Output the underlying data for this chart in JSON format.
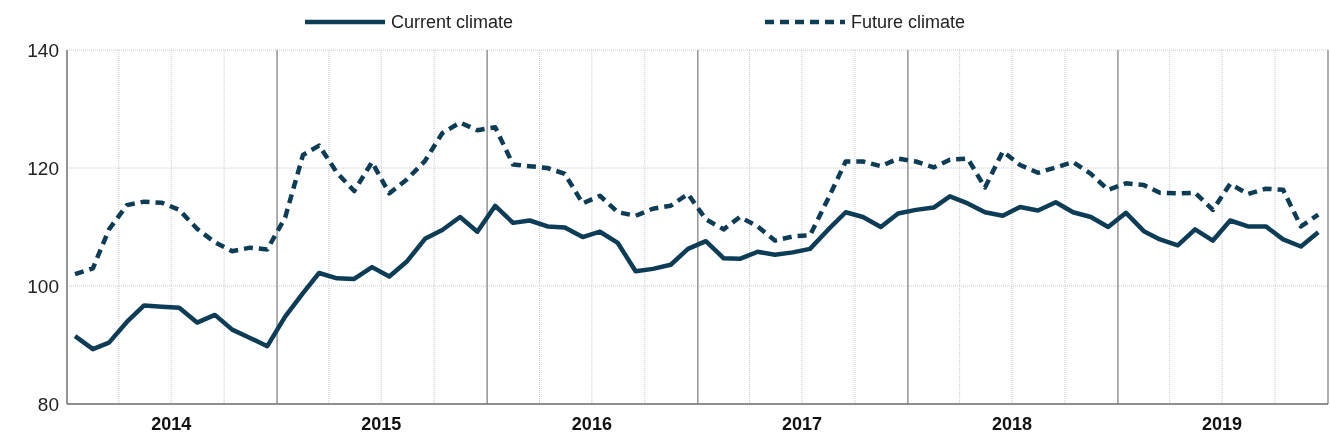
{
  "chart_data": {
    "type": "line",
    "legend": "top",
    "grid": true,
    "marker": "none",
    "x": [
      "2014-01-15",
      "2014-02-15",
      "2014-03-15",
      "2014-04-15",
      "2014-05-15",
      "2014-06-15",
      "2014-07-15",
      "2014-08-15",
      "2014-09-15",
      "2014-10-15",
      "2014-11-15",
      "2014-12-15",
      "2015-01-15",
      "2015-02-15",
      "2015-03-15",
      "2015-04-15",
      "2015-05-15",
      "2015-06-15",
      "2015-07-15",
      "2015-08-15",
      "2015-09-15",
      "2015-10-15",
      "2015-11-15",
      "2015-12-15",
      "2016-01-15",
      "2016-02-15",
      "2016-03-15",
      "2016-04-15",
      "2016-05-15",
      "2016-06-15",
      "2016-07-15",
      "2016-08-15",
      "2016-09-15",
      "2016-10-15",
      "2016-11-15",
      "2016-12-15",
      "2017-01-15",
      "2017-02-15",
      "2017-03-15",
      "2017-04-15",
      "2017-05-15",
      "2017-06-15",
      "2017-07-15",
      "2017-08-15",
      "2017-09-15",
      "2017-10-15",
      "2017-11-15",
      "2017-12-15",
      "2018-01-15",
      "2018-02-15",
      "2018-03-15",
      "2018-04-15",
      "2018-05-15",
      "2018-06-15",
      "2018-07-15",
      "2018-08-15",
      "2018-09-15",
      "2018-10-15",
      "2018-11-15",
      "2018-12-15",
      "2019-01-15",
      "2019-02-15",
      "2019-03-15",
      "2019-04-15",
      "2019-05-15",
      "2019-06-15",
      "2019-07-15",
      "2019-08-15",
      "2019-09-15",
      "2019-10-15",
      "2019-11-15",
      "2019-12-15"
    ],
    "xlim": [
      "2014-01-01",
      "2020-01-01"
    ],
    "xticks": [
      {
        "value": "2014-01-01",
        "label": null
      },
      {
        "value": "2014-04-01",
        "label": null
      },
      {
        "value": "2014-07-01",
        "label": "2014"
      },
      {
        "value": "2014-10-01",
        "label": null
      },
      {
        "value": "2015-01-01",
        "label": null
      },
      {
        "value": "2015-04-01",
        "label": null
      },
      {
        "value": "2015-07-01",
        "label": "2015"
      },
      {
        "value": "2015-10-01",
        "label": null
      },
      {
        "value": "2016-01-01",
        "label": null
      },
      {
        "value": "2016-04-01",
        "label": null
      },
      {
        "value": "2016-07-01",
        "label": "2016"
      },
      {
        "value": "2016-10-01",
        "label": null
      },
      {
        "value": "2017-01-01",
        "label": null
      },
      {
        "value": "2017-04-01",
        "label": null
      },
      {
        "value": "2017-07-01",
        "label": "2017"
      },
      {
        "value": "2017-10-01",
        "label": null
      },
      {
        "value": "2018-01-01",
        "label": null
      },
      {
        "value": "2018-04-01",
        "label": null
      },
      {
        "value": "2018-07-01",
        "label": "2018"
      },
      {
        "value": "2018-10-01",
        "label": null
      },
      {
        "value": "2019-01-01",
        "label": null
      },
      {
        "value": "2019-04-01",
        "label": null
      },
      {
        "value": "2019-07-01",
        "label": "2019"
      },
      {
        "value": "2019-10-01",
        "label": null
      },
      {
        "value": "2020-01-01",
        "label": null
      }
    ],
    "ylim": [
      80,
      140
    ],
    "yticks": [
      80,
      100,
      120,
      140
    ],
    "series": [
      {
        "name": "Current climate",
        "color": "#0d3d56",
        "line_style": "solid",
        "values": [
          91.5,
          89.3,
          90.4,
          93.9,
          96.7,
          96.5,
          96.3,
          93.8,
          95.1,
          92.6,
          91.2,
          89.8,
          94.8,
          98.8,
          102.2,
          101.3,
          101.2,
          103.2,
          101.6,
          104.2,
          108.0,
          109.5,
          111.7,
          109.2,
          113.6,
          110.7,
          111.1,
          110.1,
          109.9,
          108.3,
          109.2,
          107.3,
          102.5,
          102.9,
          103.6,
          106.3,
          107.6,
          104.7,
          104.6,
          105.8,
          105.3,
          105.7,
          106.3,
          109.5,
          112.5,
          111.7,
          110.0,
          112.3,
          112.9,
          113.3,
          115.2,
          114.0,
          112.5,
          111.9,
          113.4,
          112.8,
          114.2,
          112.5,
          111.7,
          110.0,
          112.4,
          109.3,
          107.9,
          106.9,
          109.6,
          107.7,
          111.1,
          110.1,
          110.1,
          107.9,
          106.7,
          109.1
        ]
      },
      {
        "name": "Future climate",
        "color": "#0d3d56",
        "line_style": "dashed",
        "values": [
          102.0,
          103.0,
          109.6,
          113.7,
          114.3,
          114.1,
          112.9,
          109.7,
          107.4,
          105.9,
          106.5,
          106.2,
          111.6,
          122.2,
          123.8,
          119.2,
          116.1,
          121.0,
          115.7,
          118.1,
          121.2,
          125.9,
          127.7,
          126.4,
          126.9,
          120.6,
          120.3,
          120.0,
          119.0,
          114.0,
          115.3,
          112.5,
          111.9,
          113.1,
          113.6,
          115.6,
          111.3,
          109.6,
          111.7,
          110.1,
          107.7,
          108.4,
          108.6,
          114.7,
          121.1,
          121.1,
          120.3,
          121.6,
          121.1,
          120.1,
          121.4,
          121.6,
          116.7,
          122.8,
          120.5,
          119.2,
          120.1,
          121.0,
          119.0,
          116.3,
          117.4,
          117.1,
          115.8,
          115.7,
          115.8,
          112.9,
          117.3,
          115.6,
          116.5,
          116.3,
          110.1,
          112.1
        ]
      }
    ]
  }
}
